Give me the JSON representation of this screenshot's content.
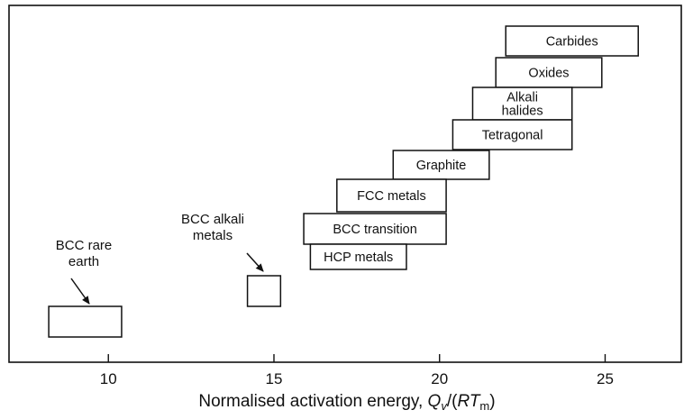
{
  "chart_data": {
    "type": "bar",
    "orientation": "horizontal-range",
    "xlabel": "Normalised activation energy, Qv/(RTm)",
    "x_ticks": [
      10,
      15,
      20,
      25
    ],
    "xlim": [
      7,
      27.3
    ],
    "grid": false,
    "groups": [
      {
        "name": "Carbides",
        "lines": [
          "Carbides"
        ],
        "start": 22.0,
        "end": 26.0
      },
      {
        "name": "Oxides",
        "lines": [
          "Oxides"
        ],
        "start": 21.7,
        "end": 24.9
      },
      {
        "name": "Alkali halides",
        "lines": [
          "Alkali",
          "halides"
        ],
        "start": 21.0,
        "end": 24.0
      },
      {
        "name": "Tetragonal",
        "lines": [
          "Tetragonal"
        ],
        "start": 20.4,
        "end": 24.0
      },
      {
        "name": "Graphite",
        "lines": [
          "Graphite"
        ],
        "start": 18.6,
        "end": 21.5
      },
      {
        "name": "FCC metals",
        "lines": [
          "FCC metals"
        ],
        "start": 16.9,
        "end": 20.2
      },
      {
        "name": "BCC transition",
        "lines": [
          "BCC transition"
        ],
        "start": 15.9,
        "end": 20.2
      },
      {
        "name": "HCP metals",
        "lines": [
          "HCP metals"
        ],
        "start": 16.1,
        "end": 19.0
      },
      {
        "name": "BCC alkali metals",
        "lines": [],
        "start": 14.2,
        "end": 15.2
      },
      {
        "name": "BCC rare earth",
        "lines": [],
        "start": 8.2,
        "end": 10.4
      }
    ],
    "annotations": [
      {
        "target": "BCC alkali metals",
        "lines": [
          "BCC alkali",
          "metals"
        ]
      },
      {
        "target": "BCC rare earth",
        "lines": [
          "BCC rare",
          "earth"
        ]
      }
    ]
  }
}
